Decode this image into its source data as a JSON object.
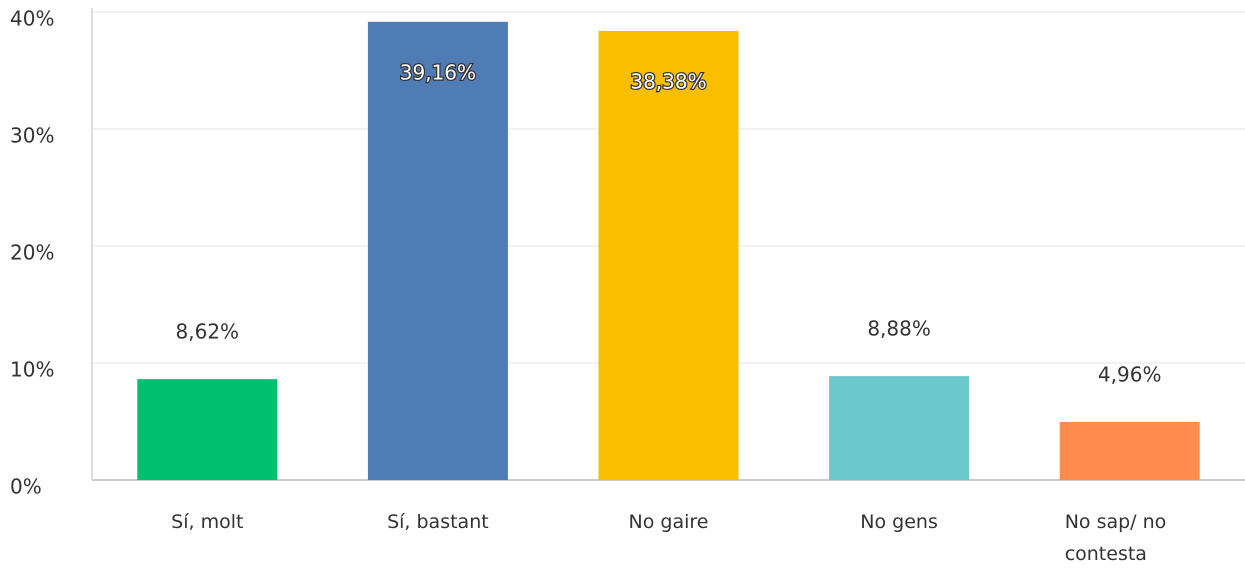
{
  "chart_data": {
    "type": "bar",
    "categories": [
      "Sí, molt",
      "Sí, bastant",
      "No gaire",
      "No gens",
      "No sap/ no contesta"
    ],
    "values": [
      8.62,
      39.16,
      38.38,
      8.88,
      4.96
    ],
    "value_labels": [
      "8,62%",
      "39,16%",
      "38,38%",
      "8,88%",
      "4,96%"
    ],
    "colors": [
      "#00bf6f",
      "#507cb6",
      "#f9be00",
      "#6bc8cd",
      "#ff8b4f"
    ],
    "ylim": [
      0,
      40
    ],
    "yticks": [
      {
        "value": 0,
        "label": "0%"
      },
      {
        "value": 10,
        "label": "10%"
      },
      {
        "value": 20,
        "label": "20%"
      },
      {
        "value": 30,
        "label": "30%"
      },
      {
        "value": 40,
        "label": "40%"
      }
    ],
    "grid": true
  }
}
